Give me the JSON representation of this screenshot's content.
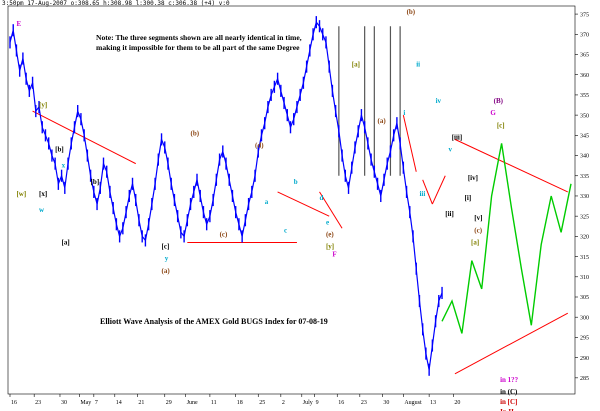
{
  "header": {
    "text": "3:50pm 17-Aug-2007 o:308.65 h:308.98 l:300.38 c:306.38 (+4) v:0"
  },
  "note": {
    "text": "Note: The three segments shown are all nearly identical in time, making it impossible for them to be all part of the same Degree"
  },
  "chart_data": {
    "type": "line",
    "title": "Elliott Wave Analysis of the AMEX Gold BUGS Index for 07-08-19",
    "xlabel": "",
    "ylabel": "",
    "ylim": [
      281,
      377
    ],
    "y_ticks": [
      285,
      290,
      295,
      300,
      305,
      310,
      315,
      320,
      325,
      330,
      335,
      340,
      345,
      350,
      355,
      360,
      365,
      370,
      375
    ],
    "x_ticks": [
      "16",
      "23",
      "30",
      "May",
      "7",
      "14",
      "21",
      "29",
      "June",
      "11",
      "18",
      "25",
      "2",
      "July",
      "9",
      "16",
      "23",
      "30",
      "August",
      "13",
      "20"
    ],
    "series": [
      {
        "style": "price-bars",
        "color": "#0000ff",
        "values": [
          368,
          371,
          366,
          361,
          364,
          359,
          356,
          358,
          351,
          352,
          347,
          345,
          343,
          340,
          338,
          333,
          335,
          332,
          338,
          343,
          347,
          351,
          349,
          345,
          340,
          335,
          331,
          328,
          332,
          338,
          336,
          331,
          327,
          323,
          320,
          322,
          326,
          330,
          333,
          329,
          324,
          320,
          319,
          323,
          328,
          333,
          339,
          344,
          342,
          338,
          333,
          329,
          325,
          321,
          320,
          324,
          328,
          331,
          334,
          330,
          326,
          323,
          325,
          329,
          334,
          339,
          341,
          338,
          334,
          330,
          326,
          323,
          320,
          324,
          328,
          331,
          335,
          341,
          345,
          348,
          352,
          355,
          357,
          359,
          356,
          353,
          350,
          347,
          349,
          352,
          355,
          358,
          362,
          366,
          370,
          373,
          372,
          370,
          368,
          362,
          356,
          351,
          346,
          340,
          335,
          332,
          337,
          342,
          346,
          350,
          347,
          343,
          339,
          336,
          333,
          330,
          334,
          338,
          341,
          345,
          348,
          343,
          337,
          331,
          326,
          320,
          312,
          304,
          297,
          291,
          287,
          293,
          299,
          304,
          306
        ]
      },
      {
        "name": "",
        "style": "projection",
        "color": "#00cc00",
        "values": [
          299,
          304,
          296,
          314,
          307,
          330,
          343,
          327,
          312,
          298,
          318,
          330,
          321,
          333
        ]
      }
    ],
    "trendlines": [
      {
        "color": "#ff0000",
        "x": [
          7,
          39
        ],
        "y": [
          351,
          338
        ]
      },
      {
        "color": "#ff0000",
        "x": [
          55,
          89
        ],
        "y": [
          318.5,
          318.5
        ]
      },
      {
        "color": "#ff0000",
        "x": [
          83,
          99
        ],
        "y": [
          331,
          325
        ]
      },
      {
        "color": "#ff0000",
        "x": [
          96,
          103
        ],
        "y": [
          331,
          322
        ]
      },
      {
        "color": "#ff0000",
        "x": [
          138,
          173
        ],
        "y": [
          344,
          331
        ]
      },
      {
        "color": "#ff0000",
        "x": [
          138,
          173
        ],
        "y": [
          286,
          301
        ]
      },
      {
        "color": "#ff0000",
        "x": [
          122,
          126
        ],
        "y": [
          350,
          336
        ]
      },
      {
        "color": "#ff0000",
        "x": [
          128,
          131
        ],
        "y": [
          334,
          328
        ]
      },
      {
        "color": "#ff0000",
        "x": [
          131,
          135
        ],
        "y": [
          328,
          335
        ]
      }
    ],
    "annotations": [
      {
        "text": "E",
        "x": 2,
        "y": 372,
        "color": "#cc00cc"
      },
      {
        "text": "[y]",
        "x": 9,
        "y": 352,
        "color": "#808000"
      },
      {
        "text": "[w]",
        "x": 2,
        "y": 330,
        "color": "#808000"
      },
      {
        "text": "[x]",
        "x": 9,
        "y": 330,
        "color": "#000000"
      },
      {
        "text": "w",
        "x": 9,
        "y": 326,
        "color": "#00aacc"
      },
      {
        "text": "[b]",
        "x": 14,
        "y": 341,
        "color": "#000000"
      },
      {
        "text": "x",
        "x": 16,
        "y": 337,
        "color": "#00aacc"
      },
      {
        "text": "[a]",
        "x": 16,
        "y": 318,
        "color": "#000000"
      },
      {
        "text": "[b]",
        "x": 25,
        "y": 333,
        "color": "#000000"
      },
      {
        "text": "[c]",
        "x": 47,
        "y": 317,
        "color": "#000000"
      },
      {
        "text": "y",
        "x": 48,
        "y": 314,
        "color": "#00aacc"
      },
      {
        "text": "(a)",
        "x": 47,
        "y": 311,
        "color": "#8b4513"
      },
      {
        "text": "(b)",
        "x": 56,
        "y": 345,
        "color": "#8b4513"
      },
      {
        "text": "(c)",
        "x": 65,
        "y": 320,
        "color": "#8b4513"
      },
      {
        "text": "(d)",
        "x": 76,
        "y": 342,
        "color": "#8b4513"
      },
      {
        "text": "b",
        "x": 88,
        "y": 333,
        "color": "#00aacc"
      },
      {
        "text": "a",
        "x": 79,
        "y": 328,
        "color": "#00aacc"
      },
      {
        "text": "c",
        "x": 85,
        "y": 321,
        "color": "#00aacc"
      },
      {
        "text": "d",
        "x": 96,
        "y": 329,
        "color": "#00aacc"
      },
      {
        "text": "e",
        "x": 98,
        "y": 323,
        "color": "#00aacc"
      },
      {
        "text": "(e)",
        "x": 98,
        "y": 320,
        "color": "#8b4513"
      },
      {
        "text": "[y]",
        "x": 98,
        "y": 317,
        "color": "#808000"
      },
      {
        "text": "F",
        "x": 100,
        "y": 315,
        "color": "#cc00cc"
      },
      {
        "text": "[a]",
        "x": 106,
        "y": 362,
        "color": "#808000"
      },
      {
        "text": "(a)",
        "x": 114,
        "y": 348,
        "color": "#8b4513"
      },
      {
        "text": "(b)",
        "x": 123,
        "y": 375,
        "color": "#8b4513"
      },
      {
        "text": "ii",
        "x": 126,
        "y": 362,
        "color": "#00aacc"
      },
      {
        "text": "i",
        "x": 122,
        "y": 350,
        "color": "#00aacc"
      },
      {
        "text": "iii",
        "x": 127,
        "y": 330,
        "color": "#00aacc"
      },
      {
        "text": "iv",
        "x": 132,
        "y": 353,
        "color": "#00aacc"
      },
      {
        "text": "v",
        "x": 136,
        "y": 341,
        "color": "#00aacc"
      },
      {
        "text": "[iii]",
        "x": 137,
        "y": 344,
        "color": "#000000"
      },
      {
        "text": "[iv]",
        "x": 142,
        "y": 334,
        "color": "#000000"
      },
      {
        "text": "[ii]",
        "x": 135,
        "y": 325,
        "color": "#000000"
      },
      {
        "text": "[v]",
        "x": 144,
        "y": 324,
        "color": "#000000"
      },
      {
        "text": "[i]",
        "x": 141,
        "y": 329,
        "color": "#000000"
      },
      {
        "text": "(c)",
        "x": 144,
        "y": 321,
        "color": "#8b4513"
      },
      {
        "text": "[a]",
        "x": 143,
        "y": 318,
        "color": "#808000"
      },
      {
        "text": "(B)",
        "x": 150,
        "y": 353,
        "color": "#800080"
      },
      {
        "text": "G",
        "x": 149,
        "y": 350,
        "color": "#cc00cc"
      },
      {
        "text": "[c]",
        "x": 151,
        "y": 347,
        "color": "#808000"
      },
      {
        "text": "in 1??",
        "x": 152,
        "y": 284,
        "color": "#cc00cc"
      },
      {
        "text": "in (C)",
        "x": 152,
        "y": 281,
        "color": "#000000"
      },
      {
        "text": "in [C]",
        "x": 152,
        "y": 278.5,
        "color": "#cc0000"
      },
      {
        "text": "In II",
        "x": 152,
        "y": 276,
        "color": "#cc0000"
      }
    ],
    "vertical_markers": [
      102,
      110,
      113,
      118,
      121
    ]
  }
}
